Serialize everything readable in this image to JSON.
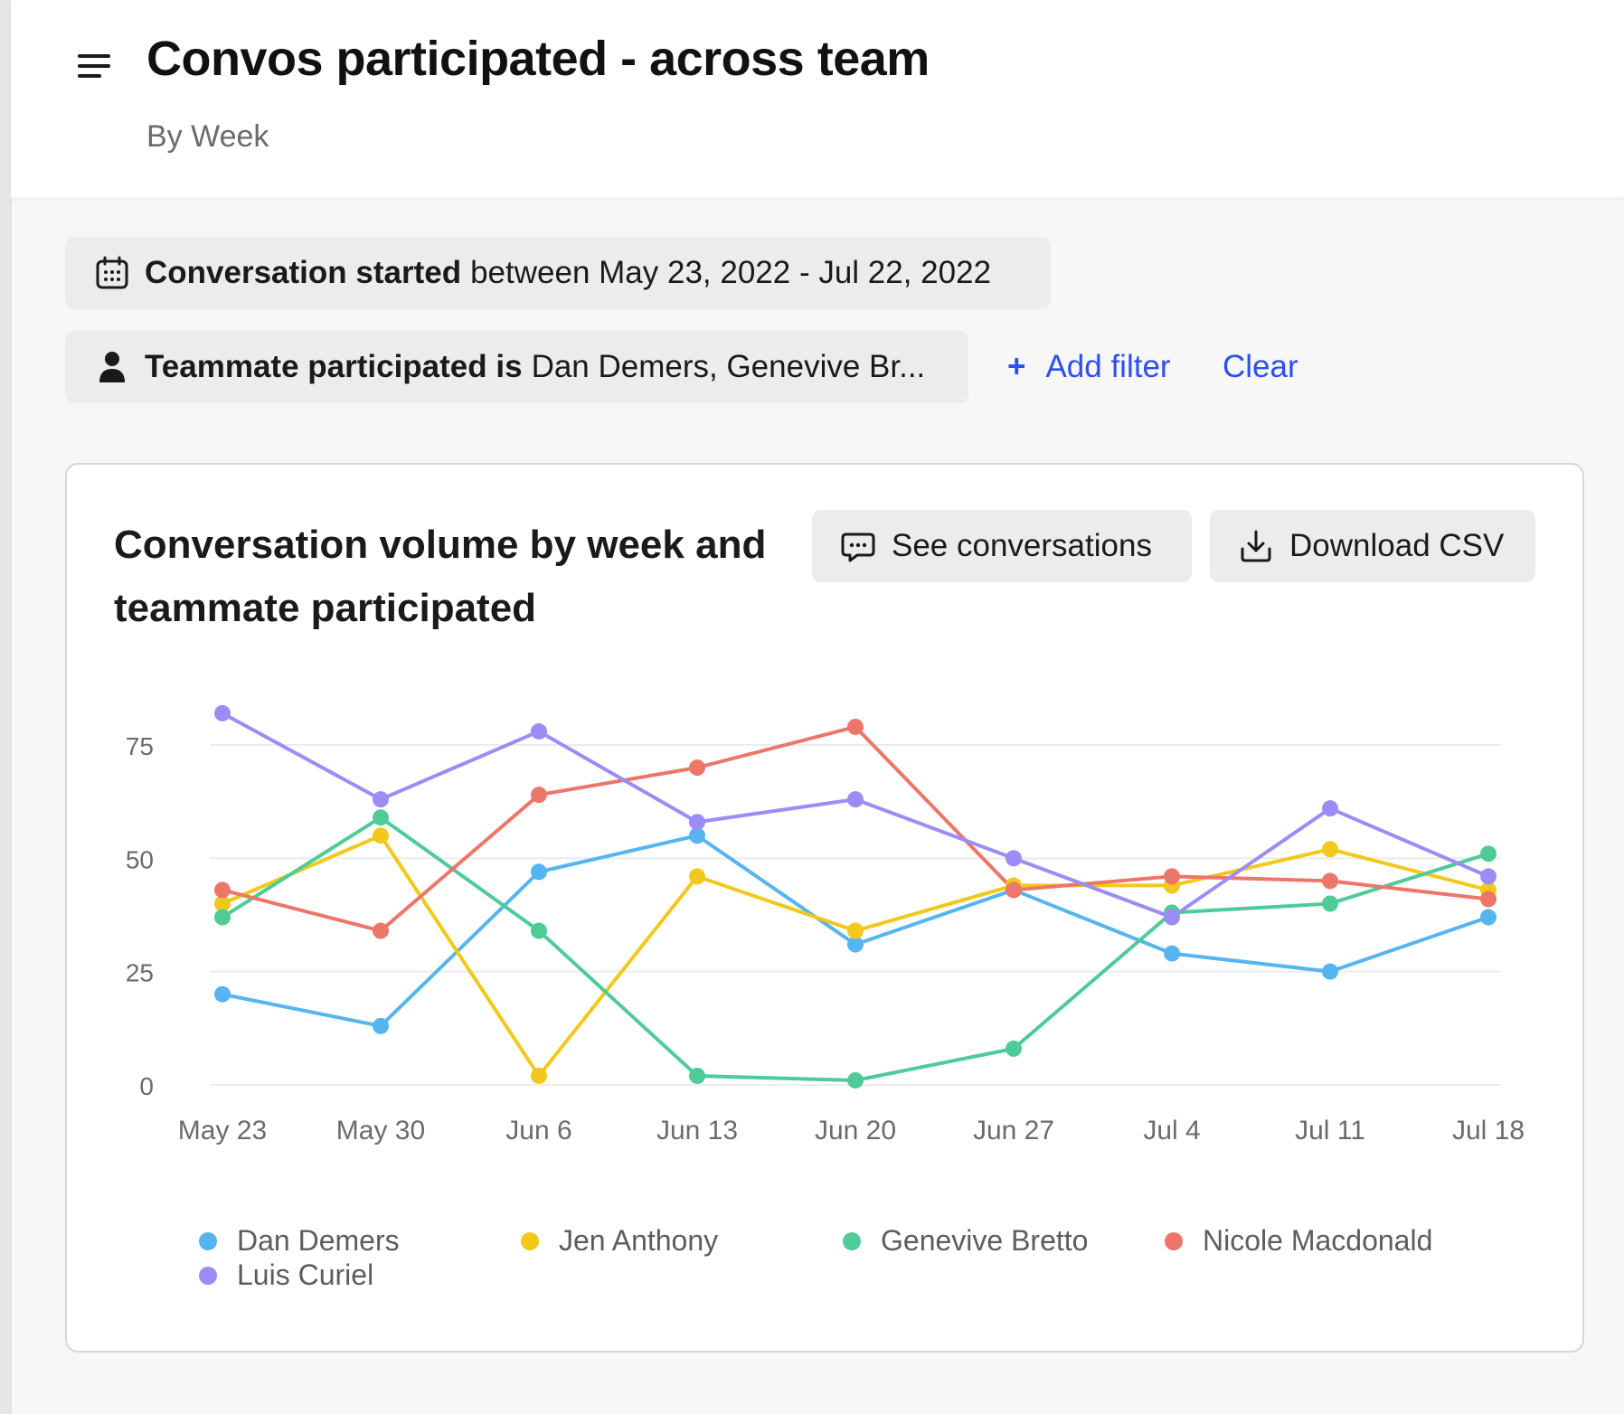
{
  "header": {
    "title": "Convos participated - across team",
    "subtitle": "By Week"
  },
  "filters": {
    "date": {
      "icon": "calendar-icon",
      "field": "Conversation started",
      "value": "between May 23, 2022 - Jul 22, 2022"
    },
    "teammate": {
      "icon": "person-icon",
      "field": "Teammate participated is",
      "value": "Dan Demers, Genevive Br..."
    },
    "add_filter_label": "Add filter",
    "clear_label": "Clear"
  },
  "card": {
    "title": "Conversation volume by week and teammate participated",
    "see_conversations_label": "See conversations",
    "download_csv_label": "Download CSV"
  },
  "colors": {
    "link": "#2c4ff0",
    "grid": "#ececec"
  },
  "chart_data": {
    "type": "line",
    "title": "Conversation volume by week and teammate participated",
    "xlabel": "",
    "ylabel": "",
    "categories": [
      "May 23",
      "May 30",
      "Jun 6",
      "Jun 13",
      "Jun 20",
      "Jun 27",
      "Jul 4",
      "Jul 11",
      "Jul 18"
    ],
    "yticks": [
      0,
      25,
      50,
      75
    ],
    "ylim": [
      0,
      75
    ],
    "grid": true,
    "legend_position": "bottom",
    "series": [
      {
        "name": "Dan Demers",
        "color": "#56b4f0",
        "values": [
          20,
          13,
          47,
          55,
          31,
          43,
          29,
          25,
          37
        ]
      },
      {
        "name": "Jen Anthony",
        "color": "#f2c81a",
        "values": [
          40,
          55,
          2,
          46,
          34,
          44,
          44,
          52,
          43
        ]
      },
      {
        "name": "Genevive Bretto",
        "color": "#4fcb98",
        "values": [
          37,
          59,
          34,
          2,
          1,
          8,
          38,
          40,
          51
        ]
      },
      {
        "name": "Nicole Macdonald",
        "color": "#ec7769",
        "values": [
          43,
          34,
          64,
          70,
          79,
          43,
          46,
          45,
          41
        ]
      },
      {
        "name": "Luis Curiel",
        "color": "#9b8cf7",
        "values": [
          82,
          63,
          78,
          58,
          63,
          50,
          37,
          61,
          46
        ]
      }
    ]
  }
}
